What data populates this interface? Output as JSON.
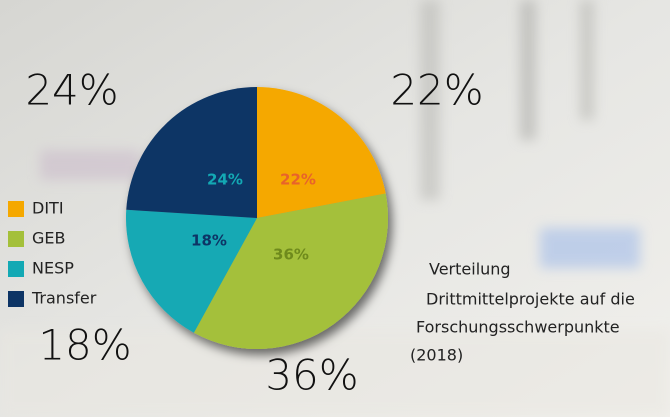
{
  "chart_data": {
    "type": "pie",
    "title_lines": [
      "Verteilung",
      "Drittmittelprojekte auf die",
      "Forschungsschwerpunkte",
      "(2018)"
    ],
    "categories": [
      "DITI",
      "GEB",
      "NESP",
      "Transfer"
    ],
    "values": [
      22,
      36,
      18,
      24
    ],
    "value_labels": [
      "22%",
      "36%",
      "18%",
      "24%"
    ],
    "colors": [
      "#f5a800",
      "#a4c03a",
      "#13a9b4",
      "#0d3465"
    ],
    "label_colors": [
      "#e8632a",
      "#6f8a1c",
      "#0d3465",
      "#13a9b4"
    ]
  }
}
